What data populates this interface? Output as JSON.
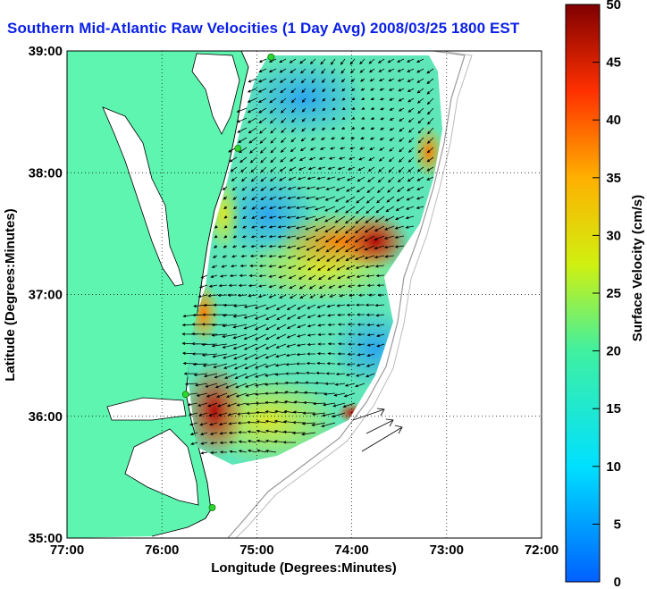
{
  "title": "Southern Mid-Atlantic Raw Velocities (1 Day Avg) 2008/03/25 1800 EST",
  "x_axis": {
    "label": "Longitude (Degrees:Minutes)",
    "ticks": [
      "77:00",
      "76:00",
      "75:00",
      "74:00",
      "73:00",
      "72:00"
    ]
  },
  "y_axis": {
    "label": "Latitude (Degrees:Minutes)",
    "ticks": [
      "39:00",
      "38:00",
      "37:00",
      "36:00",
      "35:00"
    ]
  },
  "colorbar": {
    "label": "Surface Velocity (cm/s)",
    "ticks": [
      "50",
      "45",
      "40",
      "35",
      "30",
      "25",
      "20",
      "15",
      "10",
      "5",
      "0"
    ],
    "min": 0,
    "max": 50,
    "colormap": "jet"
  },
  "map_extent": {
    "lon_west": -77,
    "lon_east": -72,
    "lat_south": 35,
    "lat_north": 39
  },
  "colors": {
    "title": "#0a1fe6",
    "land": "#5ef5b0",
    "ocean": "#ffffff",
    "grid": "#000000",
    "station": "#2fd62f"
  },
  "stations": [
    {
      "lon": -74.85,
      "lat": 38.95
    },
    {
      "lon": -75.2,
      "lat": 38.2
    },
    {
      "lon": -75.75,
      "lat": 36.18
    },
    {
      "lon": -75.47,
      "lat": 35.25
    }
  ]
}
